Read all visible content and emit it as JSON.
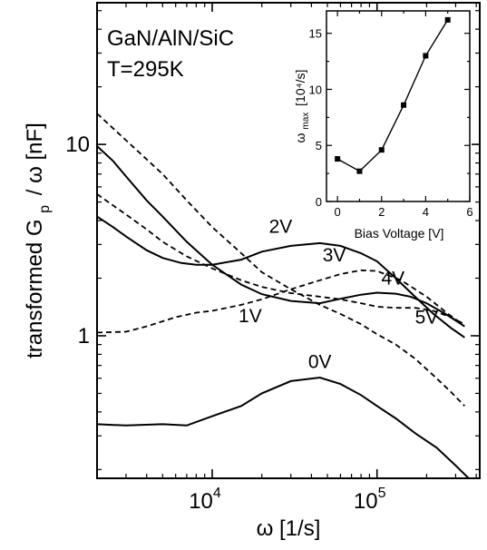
{
  "chart_data": [
    {
      "type": "line",
      "title": "",
      "annotations": [
        "GaN/AlN/SiC",
        "T=295K"
      ],
      "xlabel": "ω [1/s]",
      "ylabel_parts": {
        "main": "transformed G",
        "sub": "p",
        "tail": "/ ω [nF]"
      },
      "xscale": "log",
      "yscale": "log",
      "xlim": [
        2000,
        420000
      ],
      "ylim": [
        0.18,
        55
      ],
      "xticks": [
        {
          "value": 10000,
          "base": "10",
          "exp": "4"
        },
        {
          "value": 100000,
          "base": "10",
          "exp": "5"
        }
      ],
      "yticks": [
        {
          "value": 1,
          "label": "1"
        },
        {
          "value": 10,
          "label": "10"
        }
      ],
      "series": [
        {
          "name": "0V",
          "style": "solid",
          "x": [
            2000,
            3000,
            5000,
            7000,
            10000,
            15000,
            20000,
            30000,
            45000,
            60000,
            80000,
            100000,
            130000,
            170000,
            230000,
            300000,
            360000
          ],
          "y": [
            0.345,
            0.34,
            0.345,
            0.34,
            0.38,
            0.43,
            0.5,
            0.58,
            0.605,
            0.56,
            0.49,
            0.43,
            0.37,
            0.31,
            0.26,
            0.21,
            0.18
          ]
        },
        {
          "name": "1V",
          "style": "dashed",
          "x": [
            2000,
            3000,
            4000,
            6000,
            8000,
            10000,
            15000,
            20000,
            30000,
            45000,
            60000,
            80000,
            100000,
            140000,
            200000,
            270000,
            330000
          ],
          "y": [
            1.04,
            1.05,
            1.12,
            1.25,
            1.32,
            1.35,
            1.45,
            1.55,
            1.75,
            1.95,
            2.1,
            2.2,
            2.18,
            1.95,
            1.6,
            1.3,
            1.15
          ]
        },
        {
          "name": "2V",
          "style": "solid",
          "x": [
            2000,
            2500,
            3000,
            4000,
            5000,
            6500,
            8000,
            10000,
            15000,
            20000,
            30000,
            45000,
            60000,
            80000,
            100000,
            130000,
            170000,
            220000,
            280000,
            340000
          ],
          "y": [
            4.2,
            3.7,
            3.3,
            2.8,
            2.55,
            2.4,
            2.35,
            2.35,
            2.5,
            2.75,
            2.95,
            3.05,
            2.95,
            2.7,
            2.45,
            2.0,
            1.6,
            1.3,
            1.1,
            0.98
          ]
        },
        {
          "name": "3V",
          "style": "solid",
          "x": [
            2000,
            2500,
            3000,
            4000,
            5000,
            7000,
            10000,
            15000,
            20000,
            30000,
            45000,
            60000,
            80000,
            100000,
            130000,
            160000,
            200000,
            260000,
            340000
          ],
          "y": [
            9.8,
            8.2,
            6.8,
            5.1,
            4.2,
            3.1,
            2.35,
            1.85,
            1.65,
            1.52,
            1.48,
            1.56,
            1.64,
            1.68,
            1.66,
            1.6,
            1.48,
            1.3,
            1.12
          ]
        },
        {
          "name": "4V",
          "style": "dashed",
          "x": [
            2000,
            2500,
            3000,
            4000,
            5000,
            7000,
            10000,
            15000,
            20000,
            30000,
            45000,
            60000,
            80000,
            100000,
            130000,
            170000,
            220000,
            280000,
            340000
          ],
          "y": [
            5.5,
            4.8,
            4.3,
            3.6,
            3.1,
            2.6,
            2.25,
            1.95,
            1.8,
            1.67,
            1.6,
            1.55,
            1.48,
            1.42,
            1.4,
            1.4,
            1.35,
            1.25,
            1.15
          ]
        },
        {
          "name": "5V",
          "style": "dashed",
          "x": [
            2000,
            3000,
            5000,
            7000,
            10000,
            15000,
            20000,
            30000,
            45000,
            60000,
            80000,
            100000,
            130000,
            170000,
            220000,
            280000,
            340000
          ],
          "y": [
            14.5,
            10.5,
            7.0,
            5.1,
            3.7,
            2.7,
            2.15,
            1.75,
            1.45,
            1.3,
            1.15,
            1.02,
            0.9,
            0.76,
            0.62,
            0.51,
            0.43
          ]
        }
      ]
    },
    {
      "type": "scatter",
      "inset": true,
      "xlabel": "Bias Voltage [V]",
      "ylabel_parts": {
        "main": "ω",
        "sub": "max",
        "tail": "[10⁴/s]"
      },
      "xlim": [
        -0.5,
        6
      ],
      "ylim": [
        0,
        17
      ],
      "xticks": [
        0,
        2,
        4,
        6
      ],
      "yticks": [
        0,
        5,
        10,
        15
      ],
      "series": [
        {
          "x": [
            0,
            1,
            2,
            3,
            4,
            5
          ],
          "y": [
            3.8,
            2.7,
            4.6,
            8.6,
            13.0,
            16.2
          ]
        }
      ]
    }
  ]
}
